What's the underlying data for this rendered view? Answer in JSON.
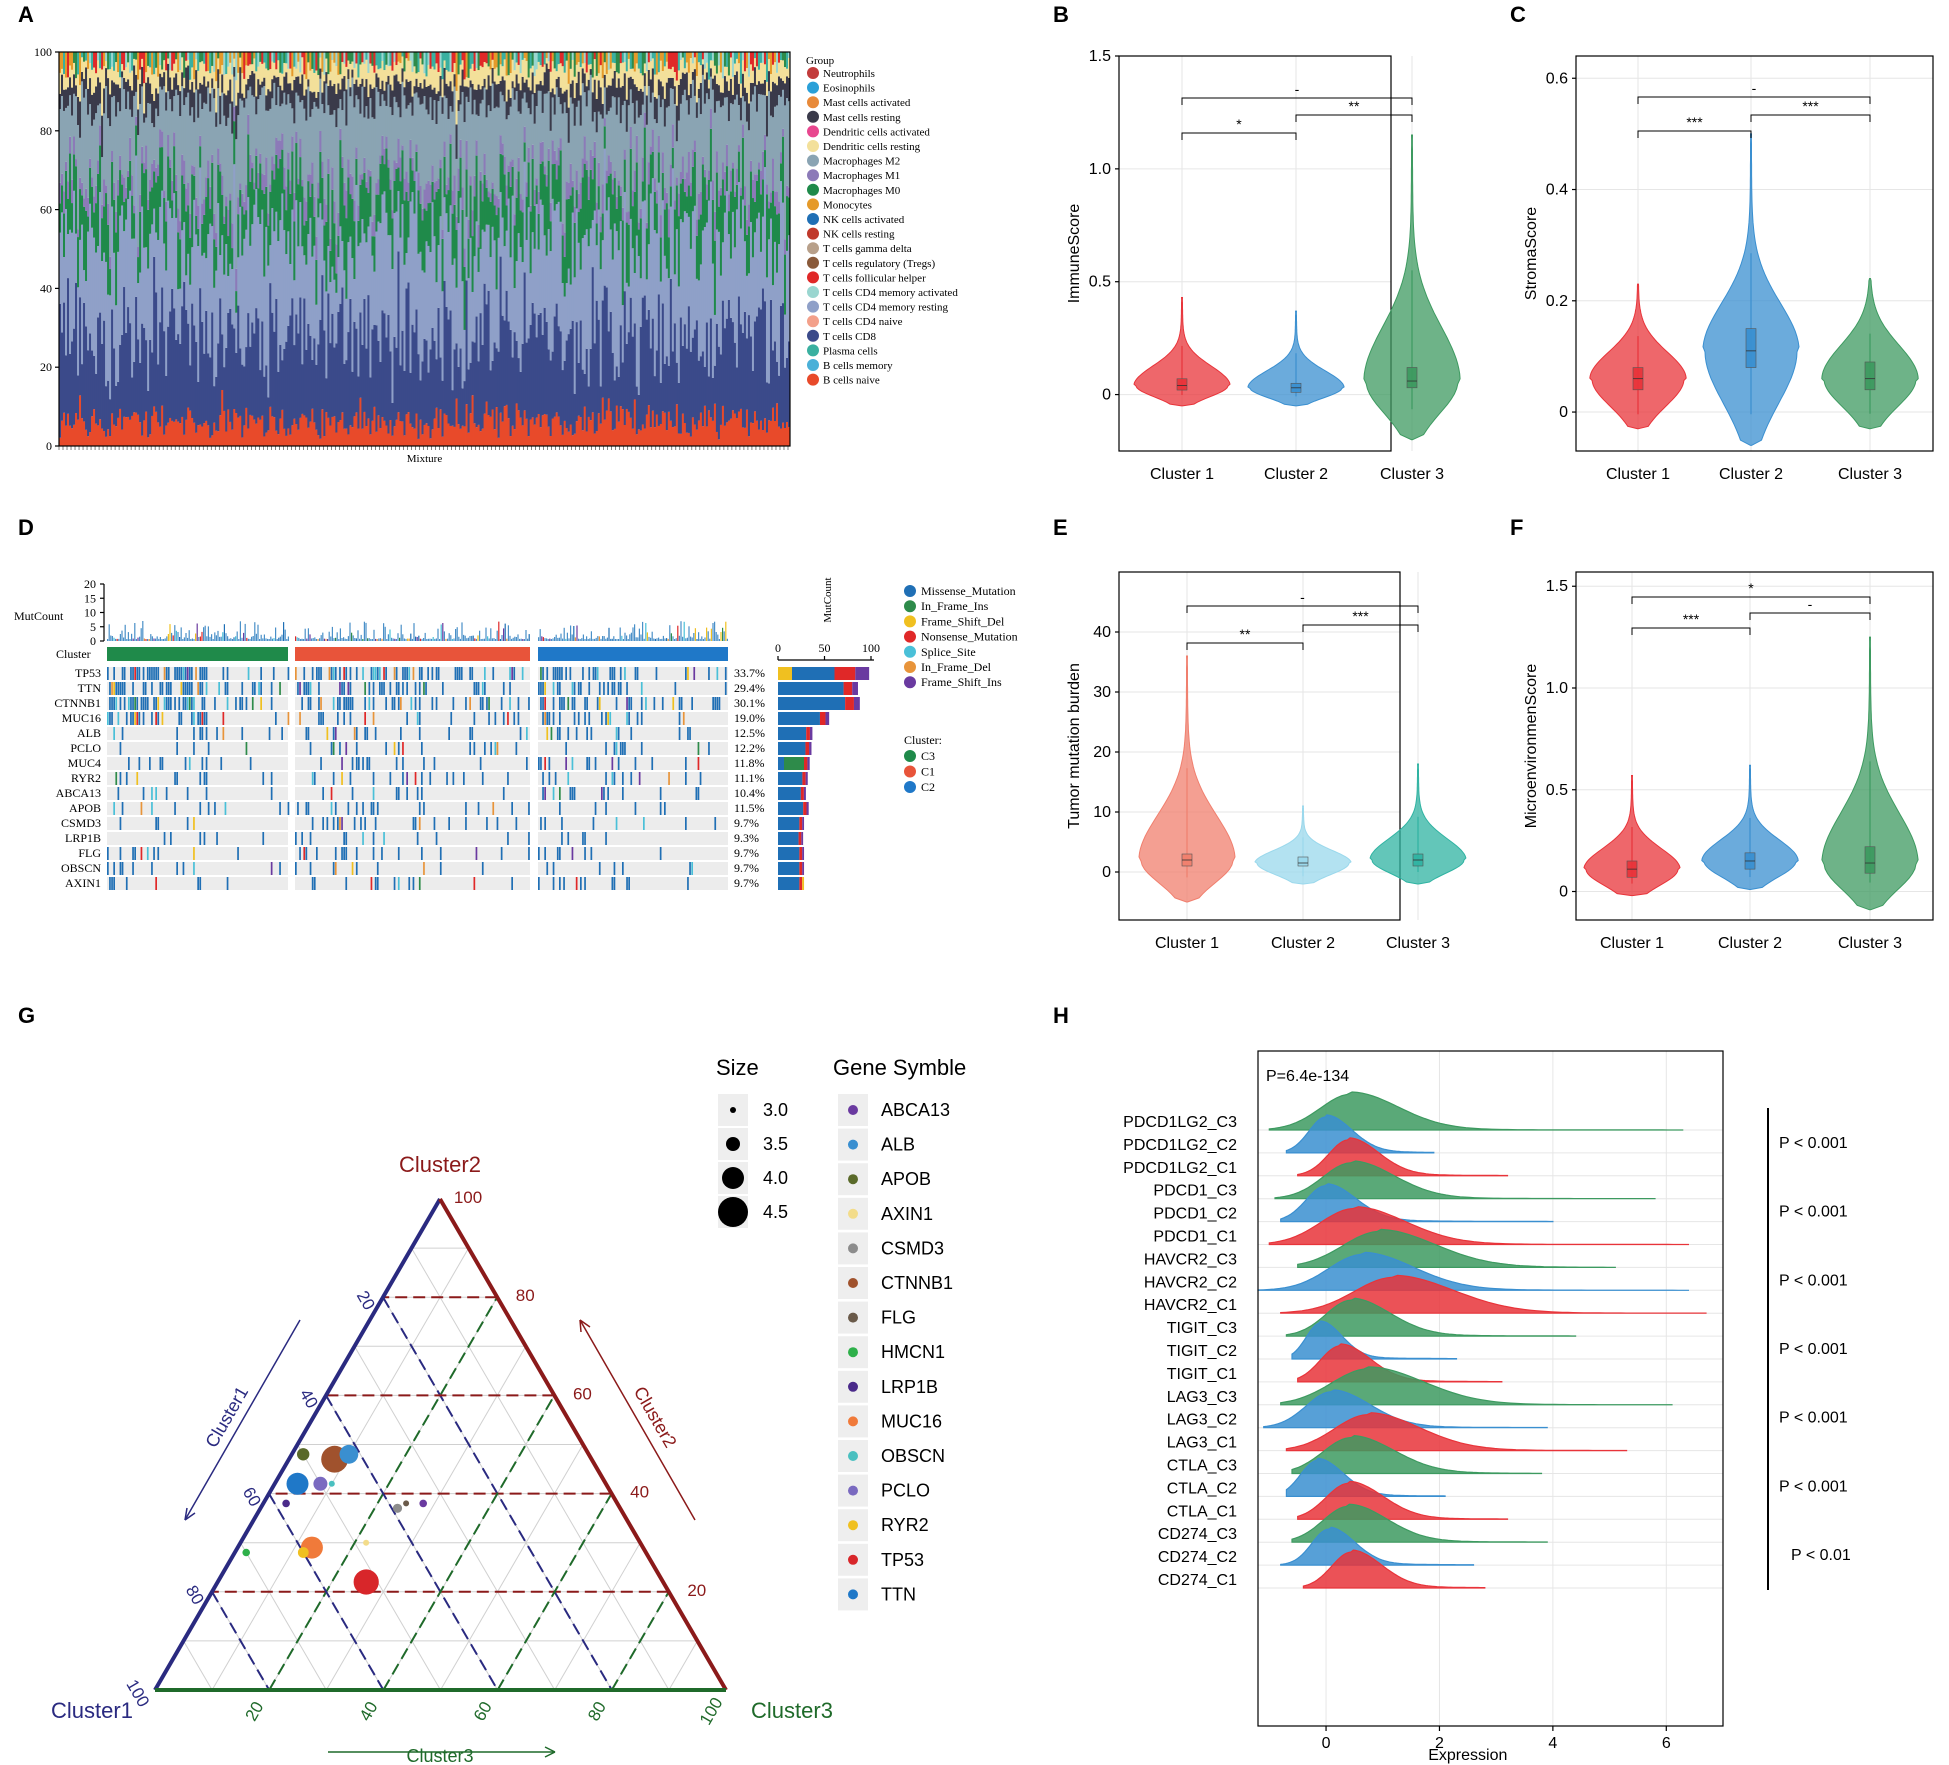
{
  "panels": {
    "A": "A",
    "B": "B",
    "C": "C",
    "D": "D",
    "E": "E",
    "F": "F",
    "G": "G",
    "H": "H"
  },
  "colors": {
    "cluster1": "#e8343a",
    "cluster2": "#3a8fd0",
    "cluster3": "#3d9a60",
    "c2teal": "#9ad8ec",
    "c3teal": "#2fb3a2"
  },
  "chart_data": [
    {
      "id": "A",
      "type": "bar",
      "title": "",
      "xlabel": "Mixture",
      "ylabel": "",
      "ylim": [
        0,
        100
      ],
      "yticks": [
        0,
        20,
        40,
        60,
        80,
        100
      ],
      "legend_title": "Group",
      "legend": [
        {
          "name": "Neutrophils",
          "color": "#c23b3b"
        },
        {
          "name": "Eosinophils",
          "color": "#2aa0d8"
        },
        {
          "name": "Mast cells activated",
          "color": "#e88a3a"
        },
        {
          "name": "Mast cells resting",
          "color": "#3a3a4a"
        },
        {
          "name": "Dendritic cells activated",
          "color": "#e8478f"
        },
        {
          "name": "Dendritic cells resting",
          "color": "#f3e09a"
        },
        {
          "name": "Macrophages M2",
          "color": "#8aa4b3"
        },
        {
          "name": "Macrophages M1",
          "color": "#8c7ab8"
        },
        {
          "name": "Macrophages M0",
          "color": "#1f8a4a"
        },
        {
          "name": "Monocytes",
          "color": "#e59a2a"
        },
        {
          "name": "NK cells activated",
          "color": "#1f6fb5"
        },
        {
          "name": "NK cells resting",
          "color": "#c0392b"
        },
        {
          "name": "T cells gamma delta",
          "color": "#b8a08a"
        },
        {
          "name": "T cells regulatory (Tregs)",
          "color": "#8a5a3a"
        },
        {
          "name": "T cells follicular helper",
          "color": "#e02828"
        },
        {
          "name": "T cells CD4 memory activated",
          "color": "#9ad6d0"
        },
        {
          "name": "T cells CD4 memory resting",
          "color": "#8fa0c8"
        },
        {
          "name": "T cells CD4 naive",
          "color": "#f3a08a"
        },
        {
          "name": "T cells CD8",
          "color": "#3b4a8a"
        },
        {
          "name": "Plasma cells",
          "color": "#3ab0a0"
        },
        {
          "name": "B cells memory",
          "color": "#4ab0d8"
        },
        {
          "name": "B cells naive",
          "color": "#e84a2a"
        }
      ],
      "typical_composition": [
        [
          "B cells naive",
          6
        ],
        [
          "T cells CD8",
          22
        ],
        [
          "T cells CD4 memory resting",
          25
        ],
        [
          "Macrophages M0",
          12
        ],
        [
          "Macrophages M1",
          4
        ],
        [
          "Macrophages M2",
          18
        ],
        [
          "Mast cells resting",
          5
        ],
        [
          "Dendritic cells resting",
          4
        ],
        [
          "others",
          4
        ]
      ]
    },
    {
      "id": "B",
      "type": "violin",
      "xlabel": "",
      "ylabel": "ImmuneScore",
      "categories": [
        "Cluster 1",
        "Cluster 2",
        "Cluster 3"
      ],
      "ylim": [
        -0.25,
        1.5
      ],
      "yticks": [
        0,
        0.5,
        1.0,
        1.5
      ],
      "yticklabels": [
        "0",
        "0.5",
        "1.0",
        "1.5"
      ],
      "series": [
        {
          "name": "Cluster 1",
          "min": -0.05,
          "max": 0.43,
          "median": 0.04,
          "q1": 0.02,
          "q3": 0.07,
          "color": "#e8343a"
        },
        {
          "name": "Cluster 2",
          "min": -0.05,
          "max": 0.37,
          "median": 0.03,
          "q1": 0.01,
          "q3": 0.05,
          "color": "#3a8fd0"
        },
        {
          "name": "Cluster 3",
          "min": -0.2,
          "max": 1.15,
          "median": 0.06,
          "q1": 0.03,
          "q3": 0.12,
          "color": "#3d9a60"
        }
      ],
      "comparisons": [
        {
          "a": 0,
          "b": 1,
          "label": "*"
        },
        {
          "a": 1,
          "b": 2,
          "label": "**"
        },
        {
          "a": 0,
          "b": 2,
          "label": "-"
        }
      ]
    },
    {
      "id": "C",
      "type": "violin",
      "xlabel": "",
      "ylabel": "StromaScore",
      "categories": [
        "Cluster 1",
        "Cluster 2",
        "Cluster 3"
      ],
      "ylim": [
        -0.07,
        0.64
      ],
      "yticks": [
        0,
        0.2,
        0.4,
        0.6
      ],
      "yticklabels": [
        "0",
        "0.2",
        "0.4",
        "0.6"
      ],
      "series": [
        {
          "name": "Cluster 1",
          "min": -0.03,
          "max": 0.23,
          "median": 0.06,
          "q1": 0.04,
          "q3": 0.08,
          "color": "#e8343a"
        },
        {
          "name": "Cluster 2",
          "min": -0.06,
          "max": 0.5,
          "median": 0.11,
          "q1": 0.08,
          "q3": 0.15,
          "color": "#3a8fd0"
        },
        {
          "name": "Cluster 3",
          "min": -0.03,
          "max": 0.24,
          "median": 0.06,
          "q1": 0.04,
          "q3": 0.09,
          "color": "#3d9a60"
        }
      ],
      "comparisons": [
        {
          "a": 0,
          "b": 1,
          "label": "***"
        },
        {
          "a": 1,
          "b": 2,
          "label": "***"
        },
        {
          "a": 0,
          "b": 2,
          "label": "-"
        }
      ]
    },
    {
      "id": "E",
      "type": "violin",
      "xlabel": "",
      "ylabel": "Tumor mutation burden",
      "categories": [
        "Cluster 1",
        "Cluster 2",
        "Cluster 3"
      ],
      "ylim": [
        -8,
        50
      ],
      "yticks": [
        0,
        10,
        20,
        30,
        40
      ],
      "yticklabels": [
        "0",
        "10",
        "20",
        "30",
        "40"
      ],
      "series": [
        {
          "name": "Cluster 1",
          "min": -5,
          "max": 36,
          "median": 2,
          "q1": 1,
          "q3": 3,
          "color": "#f07f6e"
        },
        {
          "name": "Cluster 2",
          "min": -2,
          "max": 11,
          "median": 1.5,
          "q1": 1,
          "q3": 2.5,
          "color": "#9ad8ec"
        },
        {
          "name": "Cluster 3",
          "min": -2,
          "max": 18,
          "median": 2,
          "q1": 1,
          "q3": 3,
          "color": "#2fb3a2"
        }
      ],
      "comparisons": [
        {
          "a": 0,
          "b": 1,
          "label": "**"
        },
        {
          "a": 1,
          "b": 2,
          "label": "***"
        },
        {
          "a": 0,
          "b": 2,
          "label": "-"
        }
      ]
    },
    {
      "id": "F",
      "type": "violin",
      "xlabel": "",
      "ylabel": "MicroenvironmenScore",
      "categories": [
        "Cluster 1",
        "Cluster 2",
        "Cluster 3"
      ],
      "ylim": [
        -0.14,
        1.57
      ],
      "yticks": [
        0,
        0.5,
        1.0,
        1.5
      ],
      "yticklabels": [
        "0",
        "0.5",
        "1.0",
        "1.5"
      ],
      "series": [
        {
          "name": "Cluster 1",
          "min": -0.02,
          "max": 0.57,
          "median": 0.11,
          "q1": 0.07,
          "q3": 0.15,
          "color": "#e8343a"
        },
        {
          "name": "Cluster 2",
          "min": 0.01,
          "max": 0.62,
          "median": 0.15,
          "q1": 0.11,
          "q3": 0.19,
          "color": "#3a8fd0"
        },
        {
          "name": "Cluster 3",
          "min": -0.09,
          "max": 1.25,
          "median": 0.14,
          "q1": 0.09,
          "q3": 0.22,
          "color": "#3d9a60"
        }
      ],
      "comparisons": [
        {
          "a": 0,
          "b": 1,
          "label": "***"
        },
        {
          "a": 1,
          "b": 2,
          "label": "-"
        },
        {
          "a": 0,
          "b": 2,
          "label": "*"
        }
      ]
    },
    {
      "id": "D",
      "type": "heatmap",
      "title": "",
      "mutcount_label": "MutCount",
      "mutcount_ticks": [
        "20",
        "15",
        "10",
        "5",
        "0"
      ],
      "cluster_label": "Cluster",
      "side_axis_label": "MutCount",
      "side_ticks": [
        0,
        50,
        100
      ],
      "genes": [
        {
          "gene": "TP53",
          "pct": "33.7%",
          "total": 98
        },
        {
          "gene": "TTN",
          "pct": "29.4%",
          "total": 86
        },
        {
          "gene": "CTNNB1",
          "pct": "30.1%",
          "total": 88
        },
        {
          "gene": "MUC16",
          "pct": "19.0%",
          "total": 55
        },
        {
          "gene": "ALB",
          "pct": "12.5%",
          "total": 37
        },
        {
          "gene": "PCLO",
          "pct": "12.2%",
          "total": 36
        },
        {
          "gene": "MUC4",
          "pct": "11.8%",
          "total": 34
        },
        {
          "gene": "RYR2",
          "pct": "11.1%",
          "total": 32
        },
        {
          "gene": "ABCA13",
          "pct": "10.4%",
          "total": 30
        },
        {
          "gene": "APOB",
          "pct": "11.5%",
          "total": 33
        },
        {
          "gene": "CSMD3",
          "pct": "9.7%",
          "total": 28
        },
        {
          "gene": "LRP1B",
          "pct": "9.3%",
          "total": 27
        },
        {
          "gene": "FLG",
          "pct": "9.7%",
          "total": 28
        },
        {
          "gene": "OBSCN",
          "pct": "9.7%",
          "total": 28
        },
        {
          "gene": "AXIN1",
          "pct": "9.7%",
          "total": 28
        }
      ],
      "mutation_types": [
        {
          "name": "Missense_Mutation",
          "color": "#1f6fb5"
        },
        {
          "name": "In_Frame_Ins",
          "color": "#2e8b4a"
        },
        {
          "name": "Frame_Shift_Del",
          "color": "#f0c020"
        },
        {
          "name": "Nonsense_Mutation",
          "color": "#e02828"
        },
        {
          "name": "Splice_Site",
          "color": "#4ac0d8"
        },
        {
          "name": "In_Frame_Del",
          "color": "#e8943a"
        },
        {
          "name": "Frame_Shift_Ins",
          "color": "#6a3aa0"
        }
      ],
      "cluster_legend_title": "Cluster:",
      "clusters": [
        {
          "name": "C3",
          "color": "#1f8a4a"
        },
        {
          "name": "C1",
          "color": "#e8543a"
        },
        {
          "name": "C2",
          "color": "#1f78c8"
        }
      ]
    },
    {
      "id": "G",
      "type": "scatter",
      "subtype": "ternary",
      "vertex_labels": {
        "top": "Cluster2",
        "left": "Cluster1",
        "right": "Cluster3"
      },
      "axis_labels": {
        "left": "Cluster1",
        "right": "Cluster2",
        "bottom": "Cluster3"
      },
      "ticks_left": [
        "20",
        "40",
        "60",
        "80",
        "100"
      ],
      "ticks_right": [
        "100",
        "80",
        "60",
        "40",
        "20"
      ],
      "ticks_bottom": [
        "20",
        "40",
        "60",
        "80",
        "100"
      ],
      "size_legend_title": "Size",
      "size_legend": [
        "3.0",
        "3.5",
        "4.0",
        "4.5"
      ],
      "gene_legend_title": "Gene Symble",
      "points": [
        {
          "gene": "ABCA13",
          "c1": 34,
          "c2": 38,
          "c3": 28,
          "size": 3.1,
          "color": "#6a3aa0"
        },
        {
          "gene": "ALB",
          "c1": 42,
          "c2": 48,
          "c3": 10,
          "size": 3.8,
          "color": "#3a8fd0"
        },
        {
          "gene": "APOB",
          "c1": 50,
          "c2": 48,
          "c3": 2,
          "size": 3.4,
          "color": "#5a6a2a"
        },
        {
          "gene": "AXIN1",
          "c1": 48,
          "c2": 30,
          "c3": 22,
          "size": 3.0,
          "color": "#f3dc8a"
        },
        {
          "gene": "CSMD3",
          "c1": 39,
          "c2": 37,
          "c3": 24,
          "size": 3.2,
          "color": "#8c8c8c"
        },
        {
          "gene": "CTNNB1",
          "c1": 45,
          "c2": 47,
          "c3": 8,
          "size": 4.3,
          "color": "#a0522d"
        },
        {
          "gene": "FLG",
          "c1": 37,
          "c2": 38,
          "c3": 25,
          "size": 3.0,
          "color": "#6a5a4a"
        },
        {
          "gene": "HMCN1",
          "c1": 70,
          "c2": 28,
          "c3": 2,
          "size": 3.1,
          "color": "#2eb04a"
        },
        {
          "gene": "LRP1B",
          "c1": 58,
          "c2": 38,
          "c3": 4,
          "size": 3.1,
          "color": "#4a2a8a"
        },
        {
          "gene": "MUC16",
          "c1": 58,
          "c2": 29,
          "c3": 13,
          "size": 4.0,
          "color": "#f07a3a"
        },
        {
          "gene": "OBSCN",
          "c1": 48,
          "c2": 42,
          "c3": 10,
          "size": 3.0,
          "color": "#4ac0c0"
        },
        {
          "gene": "PCLO",
          "c1": 50,
          "c2": 42,
          "c3": 8,
          "size": 3.5,
          "color": "#7a6ac0"
        },
        {
          "gene": "RYR2",
          "c1": 60,
          "c2": 28,
          "c3": 12,
          "size": 3.3,
          "color": "#f0c020"
        },
        {
          "gene": "TP53",
          "c1": 52,
          "c2": 22,
          "c3": 26,
          "size": 4.2,
          "color": "#d8262a"
        },
        {
          "gene": "TTN",
          "c1": 54,
          "c2": 42,
          "c3": 4,
          "size": 4.0,
          "color": "#1f78c8"
        }
      ]
    },
    {
      "id": "H",
      "type": "area",
      "subtype": "ridgeline",
      "xlabel": "Expression",
      "xlim": [
        -1.2,
        7
      ],
      "xticks": [
        0,
        2,
        4,
        6
      ],
      "annotation": "P=6.4e-134",
      "rows": [
        {
          "label": "PDCD1LG2_C3",
          "cluster": 3,
          "mode": 0.45,
          "sd": 0.55,
          "min": -1.0,
          "max": 6.3
        },
        {
          "label": "PDCD1LG2_C2",
          "cluster": 2,
          "mode": 0.0,
          "sd": 0.3,
          "min": -0.7,
          "max": 1.9
        },
        {
          "label": "PDCD1LG2_C1",
          "cluster": 1,
          "mode": 0.4,
          "sd": 0.35,
          "min": -0.5,
          "max": 3.2
        },
        {
          "label": "PDCD1_C3",
          "cluster": 3,
          "mode": 0.45,
          "sd": 0.5,
          "min": -0.9,
          "max": 5.8
        },
        {
          "label": "PDCD1_C2",
          "cluster": 2,
          "mode": 0.0,
          "sd": 0.35,
          "min": -0.8,
          "max": 4.0
        },
        {
          "label": "PDCD1_C1",
          "cluster": 1,
          "mode": 0.5,
          "sd": 0.6,
          "min": -1.0,
          "max": 6.4
        },
        {
          "label": "HAVCR2_C3",
          "cluster": 3,
          "mode": 0.95,
          "sd": 0.65,
          "min": -0.5,
          "max": 5.1
        },
        {
          "label": "HAVCR2_C2",
          "cluster": 2,
          "mode": 0.65,
          "sd": 0.6,
          "min": -1.2,
          "max": 6.4
        },
        {
          "label": "HAVCR2_C1",
          "cluster": 1,
          "mode": 1.2,
          "sd": 0.7,
          "min": -0.8,
          "max": 6.7
        },
        {
          "label": "TIGIT_C3",
          "cluster": 3,
          "mode": 0.45,
          "sd": 0.45,
          "min": -0.7,
          "max": 4.4
        },
        {
          "label": "TIGIT_C2",
          "cluster": 2,
          "mode": -0.1,
          "sd": 0.25,
          "min": -0.6,
          "max": 2.3
        },
        {
          "label": "TIGIT_C1",
          "cluster": 1,
          "mode": 0.25,
          "sd": 0.35,
          "min": -0.5,
          "max": 3.1
        },
        {
          "label": "LAG3_C3",
          "cluster": 3,
          "mode": 0.75,
          "sd": 0.65,
          "min": -0.8,
          "max": 6.1
        },
        {
          "label": "LAG3_C2",
          "cluster": 2,
          "mode": 0.1,
          "sd": 0.45,
          "min": -1.1,
          "max": 3.9
        },
        {
          "label": "LAG3_C1",
          "cluster": 1,
          "mode": 0.75,
          "sd": 0.6,
          "min": -0.7,
          "max": 5.3
        },
        {
          "label": "CTLA_C3",
          "cluster": 3,
          "mode": 0.45,
          "sd": 0.5,
          "min": -0.6,
          "max": 3.8
        },
        {
          "label": "CTLA_C2",
          "cluster": 2,
          "mode": -0.15,
          "sd": 0.3,
          "min": -0.7,
          "max": 2.1
        },
        {
          "label": "CTLA_C1",
          "cluster": 1,
          "mode": 0.4,
          "sd": 0.4,
          "min": -0.5,
          "max": 3.2
        },
        {
          "label": "CD274_C3",
          "cluster": 3,
          "mode": 0.4,
          "sd": 0.45,
          "min": -0.6,
          "max": 3.9
        },
        {
          "label": "CD274_C2",
          "cluster": 2,
          "mode": 0.05,
          "sd": 0.3,
          "min": -0.8,
          "max": 2.6
        },
        {
          "label": "CD274_C1",
          "cluster": 1,
          "mode": 0.45,
          "sd": 0.35,
          "min": -0.4,
          "max": 2.8
        }
      ],
      "pvalues": [
        "P < 0.001",
        "P < 0.001",
        "P < 0.001",
        "P < 0.001",
        "P < 0.001",
        "P < 0.001",
        "P < 0.01"
      ]
    }
  ]
}
